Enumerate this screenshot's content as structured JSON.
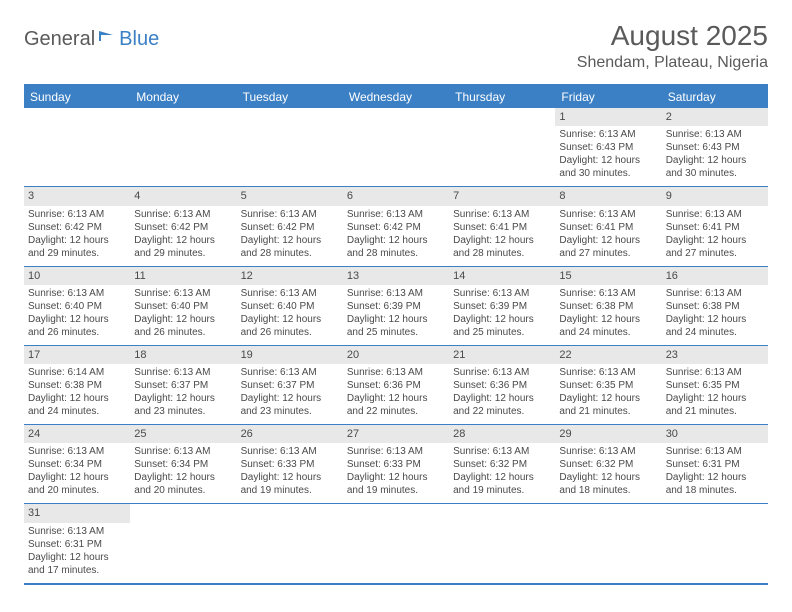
{
  "logo": {
    "part1": "General",
    "part2": "Blue"
  },
  "title": "August 2025",
  "location": "Shendam, Plateau, Nigeria",
  "colors": {
    "brand": "#3b7fc4",
    "text": "#4a4a4a",
    "daynum_bg": "#e8e8e8",
    "background": "#ffffff"
  },
  "day_headers": [
    "Sunday",
    "Monday",
    "Tuesday",
    "Wednesday",
    "Thursday",
    "Friday",
    "Saturday"
  ],
  "weeks": [
    [
      {
        "empty": true
      },
      {
        "empty": true
      },
      {
        "empty": true
      },
      {
        "empty": true
      },
      {
        "empty": true
      },
      {
        "d": "1",
        "sr": "Sunrise: 6:13 AM",
        "ss": "Sunset: 6:43 PM",
        "dl1": "Daylight: 12 hours",
        "dl2": "and 30 minutes."
      },
      {
        "d": "2",
        "sr": "Sunrise: 6:13 AM",
        "ss": "Sunset: 6:43 PM",
        "dl1": "Daylight: 12 hours",
        "dl2": "and 30 minutes."
      }
    ],
    [
      {
        "d": "3",
        "sr": "Sunrise: 6:13 AM",
        "ss": "Sunset: 6:42 PM",
        "dl1": "Daylight: 12 hours",
        "dl2": "and 29 minutes."
      },
      {
        "d": "4",
        "sr": "Sunrise: 6:13 AM",
        "ss": "Sunset: 6:42 PM",
        "dl1": "Daylight: 12 hours",
        "dl2": "and 29 minutes."
      },
      {
        "d": "5",
        "sr": "Sunrise: 6:13 AM",
        "ss": "Sunset: 6:42 PM",
        "dl1": "Daylight: 12 hours",
        "dl2": "and 28 minutes."
      },
      {
        "d": "6",
        "sr": "Sunrise: 6:13 AM",
        "ss": "Sunset: 6:42 PM",
        "dl1": "Daylight: 12 hours",
        "dl2": "and 28 minutes."
      },
      {
        "d": "7",
        "sr": "Sunrise: 6:13 AM",
        "ss": "Sunset: 6:41 PM",
        "dl1": "Daylight: 12 hours",
        "dl2": "and 28 minutes."
      },
      {
        "d": "8",
        "sr": "Sunrise: 6:13 AM",
        "ss": "Sunset: 6:41 PM",
        "dl1": "Daylight: 12 hours",
        "dl2": "and 27 minutes."
      },
      {
        "d": "9",
        "sr": "Sunrise: 6:13 AM",
        "ss": "Sunset: 6:41 PM",
        "dl1": "Daylight: 12 hours",
        "dl2": "and 27 minutes."
      }
    ],
    [
      {
        "d": "10",
        "sr": "Sunrise: 6:13 AM",
        "ss": "Sunset: 6:40 PM",
        "dl1": "Daylight: 12 hours",
        "dl2": "and 26 minutes."
      },
      {
        "d": "11",
        "sr": "Sunrise: 6:13 AM",
        "ss": "Sunset: 6:40 PM",
        "dl1": "Daylight: 12 hours",
        "dl2": "and 26 minutes."
      },
      {
        "d": "12",
        "sr": "Sunrise: 6:13 AM",
        "ss": "Sunset: 6:40 PM",
        "dl1": "Daylight: 12 hours",
        "dl2": "and 26 minutes."
      },
      {
        "d": "13",
        "sr": "Sunrise: 6:13 AM",
        "ss": "Sunset: 6:39 PM",
        "dl1": "Daylight: 12 hours",
        "dl2": "and 25 minutes."
      },
      {
        "d": "14",
        "sr": "Sunrise: 6:13 AM",
        "ss": "Sunset: 6:39 PM",
        "dl1": "Daylight: 12 hours",
        "dl2": "and 25 minutes."
      },
      {
        "d": "15",
        "sr": "Sunrise: 6:13 AM",
        "ss": "Sunset: 6:38 PM",
        "dl1": "Daylight: 12 hours",
        "dl2": "and 24 minutes."
      },
      {
        "d": "16",
        "sr": "Sunrise: 6:13 AM",
        "ss": "Sunset: 6:38 PM",
        "dl1": "Daylight: 12 hours",
        "dl2": "and 24 minutes."
      }
    ],
    [
      {
        "d": "17",
        "sr": "Sunrise: 6:14 AM",
        "ss": "Sunset: 6:38 PM",
        "dl1": "Daylight: 12 hours",
        "dl2": "and 24 minutes."
      },
      {
        "d": "18",
        "sr": "Sunrise: 6:13 AM",
        "ss": "Sunset: 6:37 PM",
        "dl1": "Daylight: 12 hours",
        "dl2": "and 23 minutes."
      },
      {
        "d": "19",
        "sr": "Sunrise: 6:13 AM",
        "ss": "Sunset: 6:37 PM",
        "dl1": "Daylight: 12 hours",
        "dl2": "and 23 minutes."
      },
      {
        "d": "20",
        "sr": "Sunrise: 6:13 AM",
        "ss": "Sunset: 6:36 PM",
        "dl1": "Daylight: 12 hours",
        "dl2": "and 22 minutes."
      },
      {
        "d": "21",
        "sr": "Sunrise: 6:13 AM",
        "ss": "Sunset: 6:36 PM",
        "dl1": "Daylight: 12 hours",
        "dl2": "and 22 minutes."
      },
      {
        "d": "22",
        "sr": "Sunrise: 6:13 AM",
        "ss": "Sunset: 6:35 PM",
        "dl1": "Daylight: 12 hours",
        "dl2": "and 21 minutes."
      },
      {
        "d": "23",
        "sr": "Sunrise: 6:13 AM",
        "ss": "Sunset: 6:35 PM",
        "dl1": "Daylight: 12 hours",
        "dl2": "and 21 minutes."
      }
    ],
    [
      {
        "d": "24",
        "sr": "Sunrise: 6:13 AM",
        "ss": "Sunset: 6:34 PM",
        "dl1": "Daylight: 12 hours",
        "dl2": "and 20 minutes."
      },
      {
        "d": "25",
        "sr": "Sunrise: 6:13 AM",
        "ss": "Sunset: 6:34 PM",
        "dl1": "Daylight: 12 hours",
        "dl2": "and 20 minutes."
      },
      {
        "d": "26",
        "sr": "Sunrise: 6:13 AM",
        "ss": "Sunset: 6:33 PM",
        "dl1": "Daylight: 12 hours",
        "dl2": "and 19 minutes."
      },
      {
        "d": "27",
        "sr": "Sunrise: 6:13 AM",
        "ss": "Sunset: 6:33 PM",
        "dl1": "Daylight: 12 hours",
        "dl2": "and 19 minutes."
      },
      {
        "d": "28",
        "sr": "Sunrise: 6:13 AM",
        "ss": "Sunset: 6:32 PM",
        "dl1": "Daylight: 12 hours",
        "dl2": "and 19 minutes."
      },
      {
        "d": "29",
        "sr": "Sunrise: 6:13 AM",
        "ss": "Sunset: 6:32 PM",
        "dl1": "Daylight: 12 hours",
        "dl2": "and 18 minutes."
      },
      {
        "d": "30",
        "sr": "Sunrise: 6:13 AM",
        "ss": "Sunset: 6:31 PM",
        "dl1": "Daylight: 12 hours",
        "dl2": "and 18 minutes."
      }
    ],
    [
      {
        "d": "31",
        "sr": "Sunrise: 6:13 AM",
        "ss": "Sunset: 6:31 PM",
        "dl1": "Daylight: 12 hours",
        "dl2": "and 17 minutes."
      },
      {
        "empty": true
      },
      {
        "empty": true
      },
      {
        "empty": true
      },
      {
        "empty": true
      },
      {
        "empty": true
      },
      {
        "empty": true
      }
    ]
  ]
}
